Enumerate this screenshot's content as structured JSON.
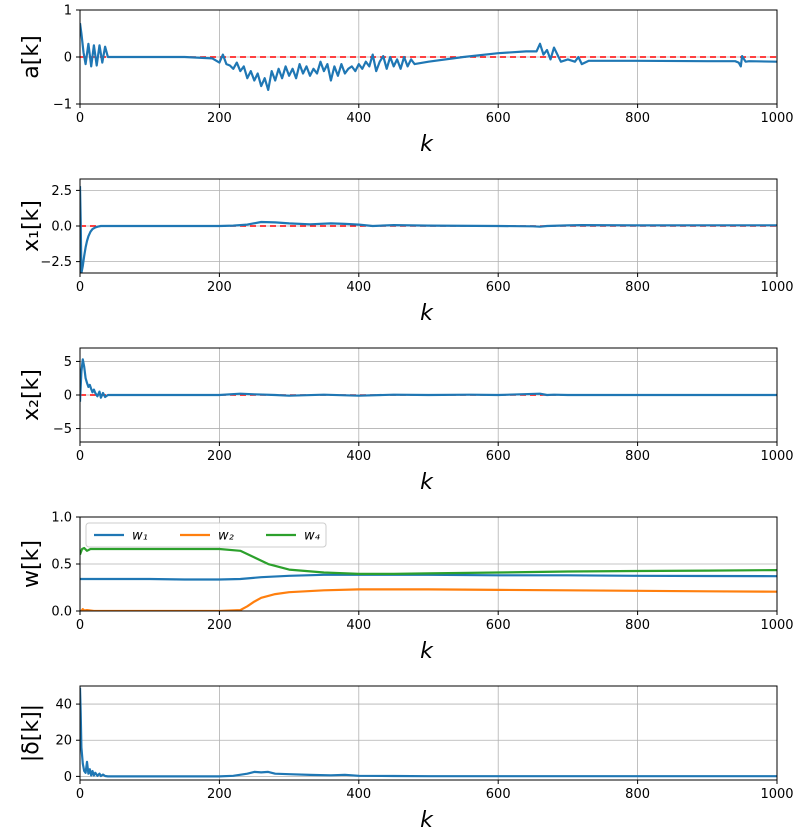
{
  "chart_data": [
    {
      "type": "line",
      "ylabel": "a[k]",
      "xlabel": "k",
      "xlim": [
        0,
        1000
      ],
      "ylim": [
        -1,
        1
      ],
      "xticks": [
        "0",
        "200",
        "400",
        "600",
        "800",
        "1000"
      ],
      "yticks": [
        {
          "v": -1,
          "t": "−1"
        },
        {
          "v": 0,
          "t": "0"
        },
        {
          "v": 1,
          "t": "1"
        }
      ],
      "grid": true,
      "reference": 0,
      "series": [
        {
          "name": "a",
          "color": "#1f77b4",
          "x": [
            0,
            2,
            5,
            8,
            12,
            16,
            20,
            24,
            28,
            32,
            36,
            40,
            60,
            100,
            150,
            190,
            200,
            205,
            210,
            215,
            220,
            225,
            230,
            235,
            240,
            245,
            250,
            255,
            260,
            265,
            270,
            275,
            280,
            285,
            290,
            295,
            300,
            305,
            310,
            315,
            320,
            325,
            330,
            335,
            340,
            345,
            350,
            355,
            360,
            365,
            370,
            375,
            380,
            385,
            390,
            395,
            400,
            405,
            410,
            415,
            420,
            425,
            430,
            435,
            440,
            445,
            450,
            455,
            460,
            465,
            470,
            475,
            480,
            500,
            550,
            600,
            640,
            655,
            660,
            665,
            670,
            675,
            680,
            690,
            700,
            710,
            715,
            720,
            730,
            800,
            900,
            940,
            945,
            948,
            950,
            955,
            960,
            1000
          ],
          "y": [
            0.72,
            0.5,
            0.1,
            -0.15,
            0.28,
            -0.2,
            0.25,
            -0.18,
            0.25,
            -0.12,
            0.22,
            0.0,
            0.0,
            0.0,
            0.0,
            -0.03,
            -0.12,
            0.05,
            -0.15,
            -0.18,
            -0.25,
            -0.12,
            -0.3,
            -0.2,
            -0.45,
            -0.3,
            -0.5,
            -0.35,
            -0.62,
            -0.45,
            -0.7,
            -0.3,
            -0.5,
            -0.25,
            -0.45,
            -0.2,
            -0.4,
            -0.25,
            -0.45,
            -0.15,
            -0.35,
            -0.2,
            -0.4,
            -0.25,
            -0.35,
            -0.1,
            -0.3,
            -0.15,
            -0.5,
            -0.2,
            -0.4,
            -0.15,
            -0.35,
            -0.25,
            -0.2,
            -0.3,
            -0.15,
            -0.25,
            -0.1,
            -0.2,
            0.05,
            -0.3,
            -0.1,
            0.02,
            -0.25,
            0.0,
            -0.2,
            -0.05,
            -0.25,
            0.0,
            -0.2,
            -0.05,
            -0.15,
            -0.1,
            0.0,
            0.08,
            0.12,
            0.12,
            0.28,
            0.05,
            0.15,
            -0.05,
            0.2,
            -0.1,
            -0.05,
            -0.1,
            0.0,
            -0.15,
            -0.08,
            -0.08,
            -0.09,
            -0.09,
            -0.12,
            -0.2,
            0.02,
            -0.1,
            -0.09,
            -0.1
          ]
        }
      ]
    },
    {
      "type": "line",
      "ylabel": "x₁[k]",
      "xlabel": "k",
      "xlim": [
        0,
        1000
      ],
      "ylim": [
        -3.3,
        3.3
      ],
      "xticks": [
        "0",
        "200",
        "400",
        "600",
        "800",
        "1000"
      ],
      "yticks": [
        {
          "v": -2.5,
          "t": "−2.5"
        },
        {
          "v": 0,
          "t": "0.0"
        },
        {
          "v": 2.5,
          "t": "2.5"
        }
      ],
      "grid": true,
      "reference": 0,
      "series": [
        {
          "name": "x1",
          "color": "#1f77b4",
          "x": [
            0,
            1,
            2,
            4,
            6,
            8,
            10,
            12,
            15,
            18,
            22,
            26,
            30,
            40,
            80,
            150,
            200,
            220,
            240,
            260,
            280,
            300,
            330,
            360,
            380,
            400,
            420,
            450,
            500,
            600,
            650,
            660,
            670,
            700,
            720,
            800,
            900,
            1000
          ],
          "y": [
            2.8,
            0.3,
            -3.3,
            -2.8,
            -2.1,
            -1.5,
            -1.05,
            -0.72,
            -0.4,
            -0.22,
            -0.1,
            -0.04,
            0.0,
            0.0,
            0.0,
            0.0,
            0.0,
            0.03,
            0.1,
            0.28,
            0.25,
            0.18,
            0.12,
            0.18,
            0.15,
            0.1,
            0.0,
            0.06,
            0.03,
            0.0,
            -0.02,
            -0.05,
            0.0,
            0.04,
            0.06,
            0.04,
            0.05,
            0.05
          ]
        }
      ]
    },
    {
      "type": "line",
      "ylabel": "x₂[k]",
      "xlabel": "k",
      "xlim": [
        0,
        1000
      ],
      "ylim": [
        -7,
        7
      ],
      "xticks": [
        "0",
        "200",
        "400",
        "600",
        "800",
        "1000"
      ],
      "yticks": [
        {
          "v": -5,
          "t": "−5"
        },
        {
          "v": 0,
          "t": "0"
        },
        {
          "v": 5,
          "t": "5"
        }
      ],
      "grid": true,
      "reference": 0,
      "series": [
        {
          "name": "x2",
          "color": "#1f77b4",
          "x": [
            0,
            2,
            4,
            6,
            8,
            10,
            12,
            14,
            16,
            18,
            20,
            22,
            25,
            28,
            30,
            33,
            36,
            40,
            60,
            200,
            230,
            250,
            280,
            300,
            350,
            400,
            450,
            500,
            560,
            600,
            660,
            670,
            680,
            700,
            800,
            900,
            1000
          ],
          "y": [
            -1.0,
            3.5,
            5.3,
            4.2,
            2.5,
            1.8,
            1.2,
            1.5,
            0.9,
            0.4,
            0.8,
            0.3,
            -0.2,
            0.5,
            -0.4,
            0.3,
            -0.3,
            0.0,
            0.0,
            0.0,
            0.2,
            0.1,
            0.0,
            -0.1,
            0.05,
            -0.1,
            0.05,
            0.0,
            0.05,
            0.0,
            0.2,
            0.0,
            0.05,
            0.0,
            0.0,
            0.0,
            0.0
          ]
        }
      ]
    },
    {
      "type": "line",
      "ylabel": "w[k]",
      "xlabel": "k",
      "xlim": [
        0,
        1000
      ],
      "ylim": [
        0,
        1
      ],
      "xticks": [
        "0",
        "200",
        "400",
        "600",
        "800",
        "1000"
      ],
      "yticks": [
        {
          "v": 0,
          "t": "0.0"
        },
        {
          "v": 0.5,
          "t": "0.5"
        },
        {
          "v": 1,
          "t": "1.0"
        }
      ],
      "grid": true,
      "legend": {
        "placement": "upper-left",
        "entries": [
          "w₁",
          "w₂",
          "w₄"
        ]
      },
      "series": [
        {
          "name": "w₁",
          "color": "#1f77b4",
          "x": [
            0,
            50,
            100,
            150,
            200,
            230,
            260,
            300,
            350,
            400,
            500,
            600,
            700,
            800,
            900,
            1000
          ],
          "y": [
            0.34,
            0.34,
            0.34,
            0.335,
            0.335,
            0.34,
            0.36,
            0.375,
            0.385,
            0.385,
            0.385,
            0.38,
            0.38,
            0.375,
            0.372,
            0.37
          ]
        },
        {
          "name": "w₂",
          "color": "#ff7f0e",
          "x": [
            0,
            2,
            4,
            6,
            10,
            20,
            50,
            100,
            200,
            230,
            240,
            250,
            260,
            280,
            300,
            350,
            400,
            500,
            600,
            700,
            800,
            900,
            1000
          ],
          "y": [
            0.0,
            0.0,
            0.02,
            0.005,
            0.01,
            0.0,
            0.0,
            0.0,
            0.0,
            0.01,
            0.05,
            0.1,
            0.14,
            0.18,
            0.2,
            0.22,
            0.23,
            0.23,
            0.225,
            0.22,
            0.215,
            0.21,
            0.205
          ]
        },
        {
          "name": "w₄",
          "color": "#2ca02c",
          "x": [
            0,
            3,
            6,
            10,
            15,
            20,
            50,
            100,
            200,
            230,
            250,
            270,
            300,
            350,
            400,
            450,
            500,
            600,
            700,
            800,
            900,
            1000
          ],
          "y": [
            0.6,
            0.66,
            0.67,
            0.64,
            0.66,
            0.66,
            0.66,
            0.66,
            0.66,
            0.64,
            0.57,
            0.5,
            0.44,
            0.41,
            0.395,
            0.395,
            0.4,
            0.41,
            0.42,
            0.425,
            0.43,
            0.435
          ]
        }
      ]
    },
    {
      "type": "line",
      "ylabel": "|δ[k]|",
      "xlabel": "k",
      "xlim": [
        0,
        1000
      ],
      "ylim": [
        -2,
        50
      ],
      "xticks": [
        "0",
        "200",
        "400",
        "600",
        "800",
        "1000"
      ],
      "yticks": [
        {
          "v": 0,
          "t": "0"
        },
        {
          "v": 20,
          "t": "20"
        },
        {
          "v": 40,
          "t": "40"
        }
      ],
      "grid": true,
      "series": [
        {
          "name": "delta",
          "color": "#1f77b4",
          "x": [
            0,
            1,
            2,
            4,
            6,
            8,
            10,
            12,
            14,
            16,
            18,
            20,
            22,
            25,
            28,
            30,
            33,
            36,
            40,
            60,
            200,
            220,
            240,
            250,
            260,
            270,
            280,
            300,
            330,
            360,
            380,
            400,
            450,
            500,
            600,
            800,
            1000
          ],
          "y": [
            49,
            35,
            16,
            7,
            3,
            2,
            8,
            1.5,
            4,
            0.5,
            3,
            0.5,
            2,
            0.3,
            1.5,
            0.2,
            1.0,
            0.2,
            0.0,
            0.0,
            0.0,
            0.3,
            1.5,
            2.5,
            2.2,
            2.5,
            1.5,
            1.2,
            0.8,
            0.6,
            0.9,
            0.3,
            0.2,
            0.1,
            0.1,
            0.1,
            0.1
          ]
        }
      ]
    }
  ]
}
